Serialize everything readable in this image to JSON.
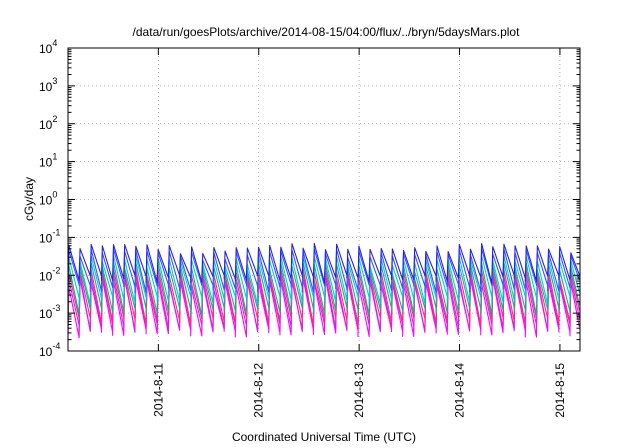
{
  "chart_data": {
    "type": "line",
    "title": "/data/run/goesPlots/archive/2014-08-15/04:00/flux/../bryn/5daysMars.plot",
    "xlabel": "Coordinated Universal Time (UTC)",
    "ylabel": "cGy/day",
    "yscale": "log",
    "ylim_exponents": [
      -4,
      4
    ],
    "y_tick_base": "10",
    "y_tick_exponents": [
      "-4",
      "-3",
      "-2",
      "-1",
      "0",
      "1",
      "2",
      "3",
      "4"
    ],
    "xlim_days": [
      10.1,
      15.2
    ],
    "x_tick_labels": [
      "2014-8-11",
      "2014-8-12",
      "2014-8-13",
      "2014-8-14",
      "2014-8-15"
    ],
    "x_tick_days": [
      11,
      12,
      13,
      14,
      15
    ],
    "grid": true,
    "sawtooth_teeth_per_day": 9,
    "series": [
      {
        "color": "#ff00ff",
        "peak": 0.006,
        "trough": 0.0003
      },
      {
        "color": "#cc22ee",
        "peak": 0.008,
        "trough": 0.0004
      },
      {
        "color": "#ff2a7a",
        "peak": 0.011,
        "trough": 0.0006
      },
      {
        "color": "#22aa88",
        "peak": 0.016,
        "trough": 0.0011
      },
      {
        "color": "#00cccc",
        "peak": 0.024,
        "trough": 0.0022
      },
      {
        "color": "#3355ff",
        "peak": 0.036,
        "trough": 0.0045
      },
      {
        "color": "#2222ee",
        "peak": 0.05,
        "trough": 0.008
      }
    ]
  }
}
